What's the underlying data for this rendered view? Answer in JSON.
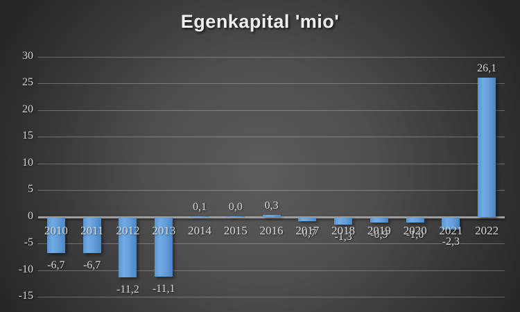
{
  "chart_data": {
    "type": "bar",
    "title": "Egenkapital 'mio'",
    "categories": [
      "2010",
      "2011",
      "2012",
      "2013",
      "2014",
      "2015",
      "2016",
      "2017",
      "2018",
      "2019",
      "2020",
      "2021",
      "2022"
    ],
    "values": [
      -6.7,
      -6.7,
      -11.2,
      -11.1,
      0.1,
      0.0,
      0.3,
      -0.7,
      -1.3,
      -0.9,
      -1.0,
      -2.3,
      26.1
    ],
    "value_labels": [
      "-6,7",
      "-6,7",
      "-11,2",
      "-11,1",
      "0,1",
      "0,0",
      "0,3",
      "-0,7",
      "-1,3",
      "-0,9",
      "-1,0",
      "-2,3",
      "26,1"
    ],
    "xlabel": "",
    "ylabel": "",
    "ylim": [
      -15,
      30
    ],
    "yticks": [
      30,
      25,
      20,
      15,
      10,
      5,
      0,
      -5,
      -10,
      -15
    ],
    "grid": true,
    "legend_position": "none",
    "decimal_separator": ",",
    "colors": {
      "bar_fill_light": "#71abe4",
      "bar_fill_dark": "#4a86c4",
      "background_center": "#5c5c5c",
      "background_edge": "#272727",
      "gridline": "#8f8f8f",
      "zero_axis": "#9e9e9e",
      "label_text": "#d6d6d6",
      "title_text": "#f0f0f0"
    }
  }
}
